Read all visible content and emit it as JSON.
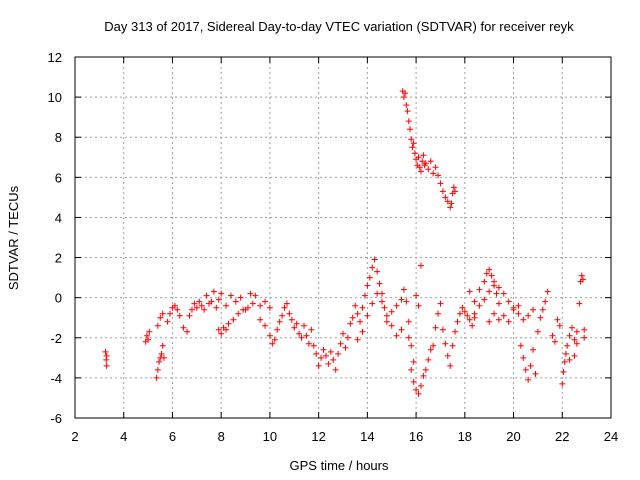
{
  "chart_data": {
    "type": "scatter",
    "title": "Day 313 of 2017, Sidereal Day-to-day VTEC variation (SDTVAR) for receiver reyk",
    "xlabel": "GPS time / hours",
    "ylabel": "SDTVAR / TECUs",
    "xlim": [
      2,
      24
    ],
    "ylim": [
      -6,
      12
    ],
    "xticks": [
      2,
      4,
      6,
      8,
      10,
      12,
      14,
      16,
      18,
      20,
      22,
      24
    ],
    "yticks": [
      -6,
      -4,
      -2,
      0,
      2,
      4,
      6,
      8,
      10,
      12
    ],
    "grid": true,
    "marker": "+",
    "color": "#ff0000",
    "series": [
      {
        "name": "reyk",
        "points": [
          [
            3.25,
            -2.7
          ],
          [
            3.3,
            -2.9
          ],
          [
            3.3,
            -3.4
          ],
          [
            3.28,
            -3.1
          ],
          [
            4.9,
            -2.2
          ],
          [
            4.95,
            -1.9
          ],
          [
            5.0,
            -2.1
          ],
          [
            5.05,
            -1.7
          ],
          [
            5.35,
            -4.0
          ],
          [
            5.4,
            -3.6
          ],
          [
            5.45,
            -3.2
          ],
          [
            5.5,
            -3.0
          ],
          [
            5.55,
            -2.8
          ],
          [
            5.6,
            -2.4
          ],
          [
            5.65,
            -3.0
          ],
          [
            5.4,
            -1.4
          ],
          [
            5.5,
            -1.0
          ],
          [
            5.6,
            -0.8
          ],
          [
            5.8,
            -1.2
          ],
          [
            5.9,
            -0.8
          ],
          [
            6.0,
            -0.5
          ],
          [
            6.1,
            -0.4
          ],
          [
            6.2,
            -0.6
          ],
          [
            6.3,
            -0.9
          ],
          [
            6.45,
            -1.5
          ],
          [
            6.6,
            -1.7
          ],
          [
            6.7,
            -0.9
          ],
          [
            6.8,
            -0.6
          ],
          [
            6.9,
            -0.3
          ],
          [
            7.0,
            -0.5
          ],
          [
            7.1,
            -0.2
          ],
          [
            7.2,
            -0.4
          ],
          [
            7.3,
            -0.6
          ],
          [
            7.4,
            0.1
          ],
          [
            7.5,
            -0.3
          ],
          [
            7.6,
            -0.2
          ],
          [
            7.7,
            0.3
          ],
          [
            7.8,
            -0.5
          ],
          [
            7.9,
            -0.1
          ],
          [
            8.0,
            0.2
          ],
          [
            7.9,
            -1.6
          ],
          [
            8.0,
            -1.8
          ],
          [
            8.1,
            -1.5
          ],
          [
            8.2,
            -1.6
          ],
          [
            8.3,
            -1.3
          ],
          [
            8.5,
            -1.1
          ],
          [
            8.7,
            -0.8
          ],
          [
            8.9,
            -0.6
          ],
          [
            9.1,
            -0.5
          ],
          [
            9.3,
            -0.3
          ],
          [
            8.2,
            -0.4
          ],
          [
            8.4,
            0.1
          ],
          [
            8.6,
            -0.2
          ],
          [
            8.8,
            0.0
          ],
          [
            9.0,
            -0.6
          ],
          [
            9.2,
            0.2
          ],
          [
            9.4,
            0.1
          ],
          [
            9.6,
            -0.4
          ],
          [
            9.8,
            -0.2
          ],
          [
            10.0,
            -0.5
          ],
          [
            9.6,
            -1.1
          ],
          [
            9.8,
            -1.4
          ],
          [
            10.0,
            -1.9
          ],
          [
            10.1,
            -2.3
          ],
          [
            10.2,
            -2.1
          ],
          [
            10.3,
            -1.6
          ],
          [
            10.4,
            -1.2
          ],
          [
            10.5,
            -0.9
          ],
          [
            10.6,
            -0.5
          ],
          [
            10.7,
            -0.3
          ],
          [
            10.8,
            -0.8
          ],
          [
            10.9,
            -1.1
          ],
          [
            11.0,
            -1.5
          ],
          [
            11.1,
            -1.3
          ],
          [
            11.2,
            -1.8
          ],
          [
            11.3,
            -2.0
          ],
          [
            11.4,
            -1.4
          ],
          [
            11.5,
            -1.9
          ],
          [
            11.6,
            -2.3
          ],
          [
            11.7,
            -1.6
          ],
          [
            11.8,
            -2.4
          ],
          [
            11.9,
            -2.8
          ],
          [
            12.0,
            -3.4
          ],
          [
            12.1,
            -3.0
          ],
          [
            12.2,
            -2.6
          ],
          [
            12.3,
            -2.9
          ],
          [
            12.4,
            -3.3
          ],
          [
            12.5,
            -2.7
          ],
          [
            12.6,
            -3.1
          ],
          [
            12.7,
            -3.6
          ],
          [
            12.8,
            -2.8
          ],
          [
            12.9,
            -2.3
          ],
          [
            13.0,
            -1.8
          ],
          [
            13.1,
            -2.5
          ],
          [
            13.2,
            -2.0
          ],
          [
            13.3,
            -1.3
          ],
          [
            13.4,
            -1.0
          ],
          [
            13.5,
            -0.4
          ],
          [
            13.6,
            -0.8
          ],
          [
            13.7,
            -1.2
          ],
          [
            13.8,
            -0.5
          ],
          [
            13.9,
            0.1
          ],
          [
            14.0,
            0.6
          ],
          [
            14.1,
            1.0
          ],
          [
            14.2,
            1.5
          ],
          [
            14.3,
            1.9
          ],
          [
            14.4,
            1.3
          ],
          [
            14.5,
            0.7
          ],
          [
            14.6,
            0.2
          ],
          [
            14.7,
            -0.5
          ],
          [
            13.6,
            -2.1
          ],
          [
            13.8,
            -1.7
          ],
          [
            14.0,
            -0.9
          ],
          [
            14.2,
            -0.3
          ],
          [
            14.4,
            0.2
          ],
          [
            14.6,
            -0.2
          ],
          [
            14.8,
            -0.9
          ],
          [
            15.0,
            -1.4
          ],
          [
            15.2,
            -1.9
          ],
          [
            15.4,
            -1.6
          ],
          [
            14.8,
            -1.2
          ],
          [
            15.0,
            -0.7
          ],
          [
            15.2,
            -0.4
          ],
          [
            15.4,
            -0.1
          ],
          [
            15.5,
            0.4
          ],
          [
            15.6,
            -0.2
          ],
          [
            15.7,
            -1.2
          ],
          [
            15.8,
            -2.4
          ],
          [
            15.9,
            -3.2
          ],
          [
            15.7,
            -2.0
          ],
          [
            15.8,
            -3.6
          ],
          [
            15.9,
            -4.2
          ],
          [
            16.0,
            -4.6
          ],
          [
            16.1,
            -4.8
          ],
          [
            16.2,
            -4.4
          ],
          [
            16.3,
            -3.9
          ],
          [
            16.4,
            -3.6
          ],
          [
            16.5,
            -3.1
          ],
          [
            16.6,
            -2.6
          ],
          [
            16.7,
            -2.4
          ],
          [
            16.0,
            0.1
          ],
          [
            16.1,
            -0.4
          ],
          [
            16.2,
            1.6
          ],
          [
            16.8,
            -1.5
          ],
          [
            16.9,
            -0.8
          ],
          [
            17.0,
            -0.3
          ],
          [
            17.1,
            -1.6
          ],
          [
            17.2,
            -2.3
          ],
          [
            17.3,
            -2.9
          ],
          [
            17.4,
            -3.4
          ],
          [
            17.5,
            -2.4
          ],
          [
            17.6,
            -1.7
          ],
          [
            17.7,
            -1.2
          ],
          [
            17.8,
            -0.8
          ],
          [
            17.9,
            -0.5
          ],
          [
            18.0,
            -0.7
          ],
          [
            18.1,
            -0.9
          ],
          [
            18.2,
            -1.1
          ],
          [
            18.3,
            -1.4
          ],
          [
            18.4,
            -1.0
          ],
          [
            18.2,
            0.3
          ],
          [
            18.4,
            -0.2
          ],
          [
            18.6,
            0.4
          ],
          [
            18.8,
            0.8
          ],
          [
            18.9,
            1.2
          ],
          [
            19.0,
            1.4
          ],
          [
            19.1,
            1.1
          ],
          [
            19.2,
            0.6
          ],
          [
            19.3,
            0.2
          ],
          [
            19.4,
            -0.3
          ],
          [
            18.4,
            -0.8
          ],
          [
            18.6,
            -0.4
          ],
          [
            18.8,
            -0.1
          ],
          [
            19.0,
            0.3
          ],
          [
            19.2,
            0.8
          ],
          [
            19.4,
            0.5
          ],
          [
            19.6,
            0.2
          ],
          [
            19.8,
            -0.2
          ],
          [
            20.0,
            -0.6
          ],
          [
            20.2,
            -0.4
          ],
          [
            19.0,
            -1.2
          ],
          [
            19.2,
            -0.8
          ],
          [
            19.4,
            -1.1
          ],
          [
            19.6,
            -0.9
          ],
          [
            19.8,
            -1.2
          ],
          [
            20.0,
            -0.5
          ],
          [
            20.2,
            -0.8
          ],
          [
            20.4,
            -1.1
          ],
          [
            20.6,
            -0.9
          ],
          [
            20.8,
            -0.6
          ],
          [
            20.3,
            -2.4
          ],
          [
            20.4,
            -3.0
          ],
          [
            20.5,
            -3.6
          ],
          [
            20.6,
            -4.1
          ],
          [
            20.7,
            -3.4
          ],
          [
            20.8,
            -2.6
          ],
          [
            20.9,
            -3.8
          ],
          [
            21.0,
            -1.7
          ],
          [
            21.1,
            -1.0
          ],
          [
            21.2,
            -0.6
          ],
          [
            21.3,
            -0.2
          ],
          [
            21.4,
            0.3
          ],
          [
            21.6,
            -1.9
          ],
          [
            21.7,
            -2.2
          ],
          [
            21.8,
            -1.1
          ],
          [
            21.9,
            -1.4
          ],
          [
            22.0,
            -4.3
          ],
          [
            22.05,
            -3.7
          ],
          [
            22.1,
            -3.2
          ],
          [
            22.15,
            -2.8
          ],
          [
            22.2,
            -2.4
          ],
          [
            22.3,
            -1.9
          ],
          [
            22.4,
            -1.5
          ],
          [
            22.5,
            -2.1
          ],
          [
            22.6,
            -1.7
          ],
          [
            22.7,
            -0.3
          ],
          [
            22.75,
            0.8
          ],
          [
            22.8,
            1.1
          ],
          [
            22.85,
            0.9
          ],
          [
            22.9,
            -1.6
          ],
          [
            22.6,
            -2.3
          ],
          [
            22.5,
            -2.9
          ],
          [
            22.3,
            -3.1
          ],
          [
            22.9,
            -2.0
          ],
          [
            15.45,
            10.3
          ],
          [
            15.5,
            10.0
          ],
          [
            15.55,
            10.2
          ],
          [
            15.6,
            9.6
          ],
          [
            15.65,
            9.3
          ],
          [
            15.7,
            8.8
          ],
          [
            15.75,
            8.4
          ],
          [
            15.8,
            7.9
          ],
          [
            15.85,
            7.5
          ],
          [
            15.9,
            7.7
          ],
          [
            15.95,
            7.2
          ],
          [
            16.0,
            6.9
          ],
          [
            16.05,
            6.6
          ],
          [
            16.1,
            7.0
          ],
          [
            16.15,
            6.5
          ],
          [
            16.2,
            6.3
          ],
          [
            16.25,
            6.8
          ],
          [
            16.3,
            7.1
          ],
          [
            16.35,
            6.6
          ],
          [
            16.4,
            6.7
          ],
          [
            16.5,
            6.4
          ],
          [
            16.6,
            6.8
          ],
          [
            16.7,
            6.2
          ],
          [
            16.8,
            6.5
          ],
          [
            16.9,
            6.1
          ],
          [
            17.0,
            5.7
          ],
          [
            17.1,
            5.3
          ],
          [
            17.2,
            5.0
          ],
          [
            17.3,
            4.8
          ],
          [
            17.4,
            4.5
          ],
          [
            17.45,
            4.7
          ],
          [
            17.5,
            5.2
          ],
          [
            17.55,
            5.5
          ],
          [
            17.6,
            5.3
          ]
        ]
      }
    ]
  }
}
